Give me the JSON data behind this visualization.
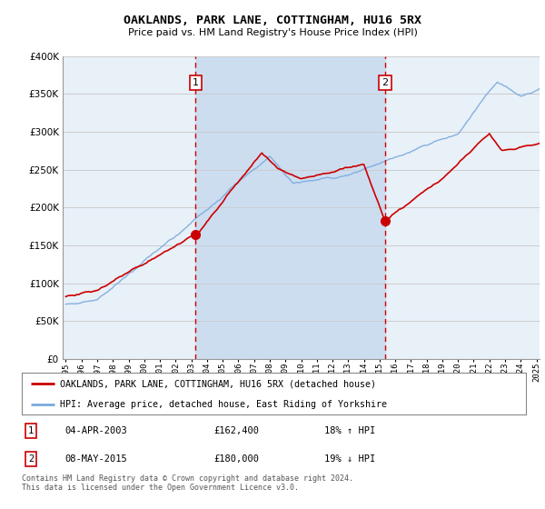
{
  "title": "OAKLANDS, PARK LANE, COTTINGHAM, HU16 5RX",
  "subtitle": "Price paid vs. HM Land Registry's House Price Index (HPI)",
  "legend_line1": "OAKLANDS, PARK LANE, COTTINGHAM, HU16 5RX (detached house)",
  "legend_line2": "HPI: Average price, detached house, East Riding of Yorkshire",
  "transaction1_date": "04-APR-2003",
  "transaction1_price": "£162,400",
  "transaction1_hpi": "18% ↑ HPI",
  "transaction2_date": "08-MAY-2015",
  "transaction2_price": "£180,000",
  "transaction2_hpi": "19% ↓ HPI",
  "footer": "Contains HM Land Registry data © Crown copyright and database right 2024.\nThis data is licensed under the Open Government Licence v3.0.",
  "price_line_color": "#cc0000",
  "hpi_line_color": "#7aaadd",
  "vline_color": "#cc0000",
  "marker_color": "#cc0000",
  "plot_bg_color": "#e8f0f8",
  "shade_color": "#ccddf0",
  "grid_color": "#cccccc",
  "ylim": [
    0,
    400000
  ],
  "yticks": [
    0,
    50000,
    100000,
    150000,
    200000,
    250000,
    300000,
    350000,
    400000
  ],
  "year_start": 1995,
  "year_end": 2025,
  "transaction1_year": 2003.27,
  "transaction2_year": 2015.35
}
